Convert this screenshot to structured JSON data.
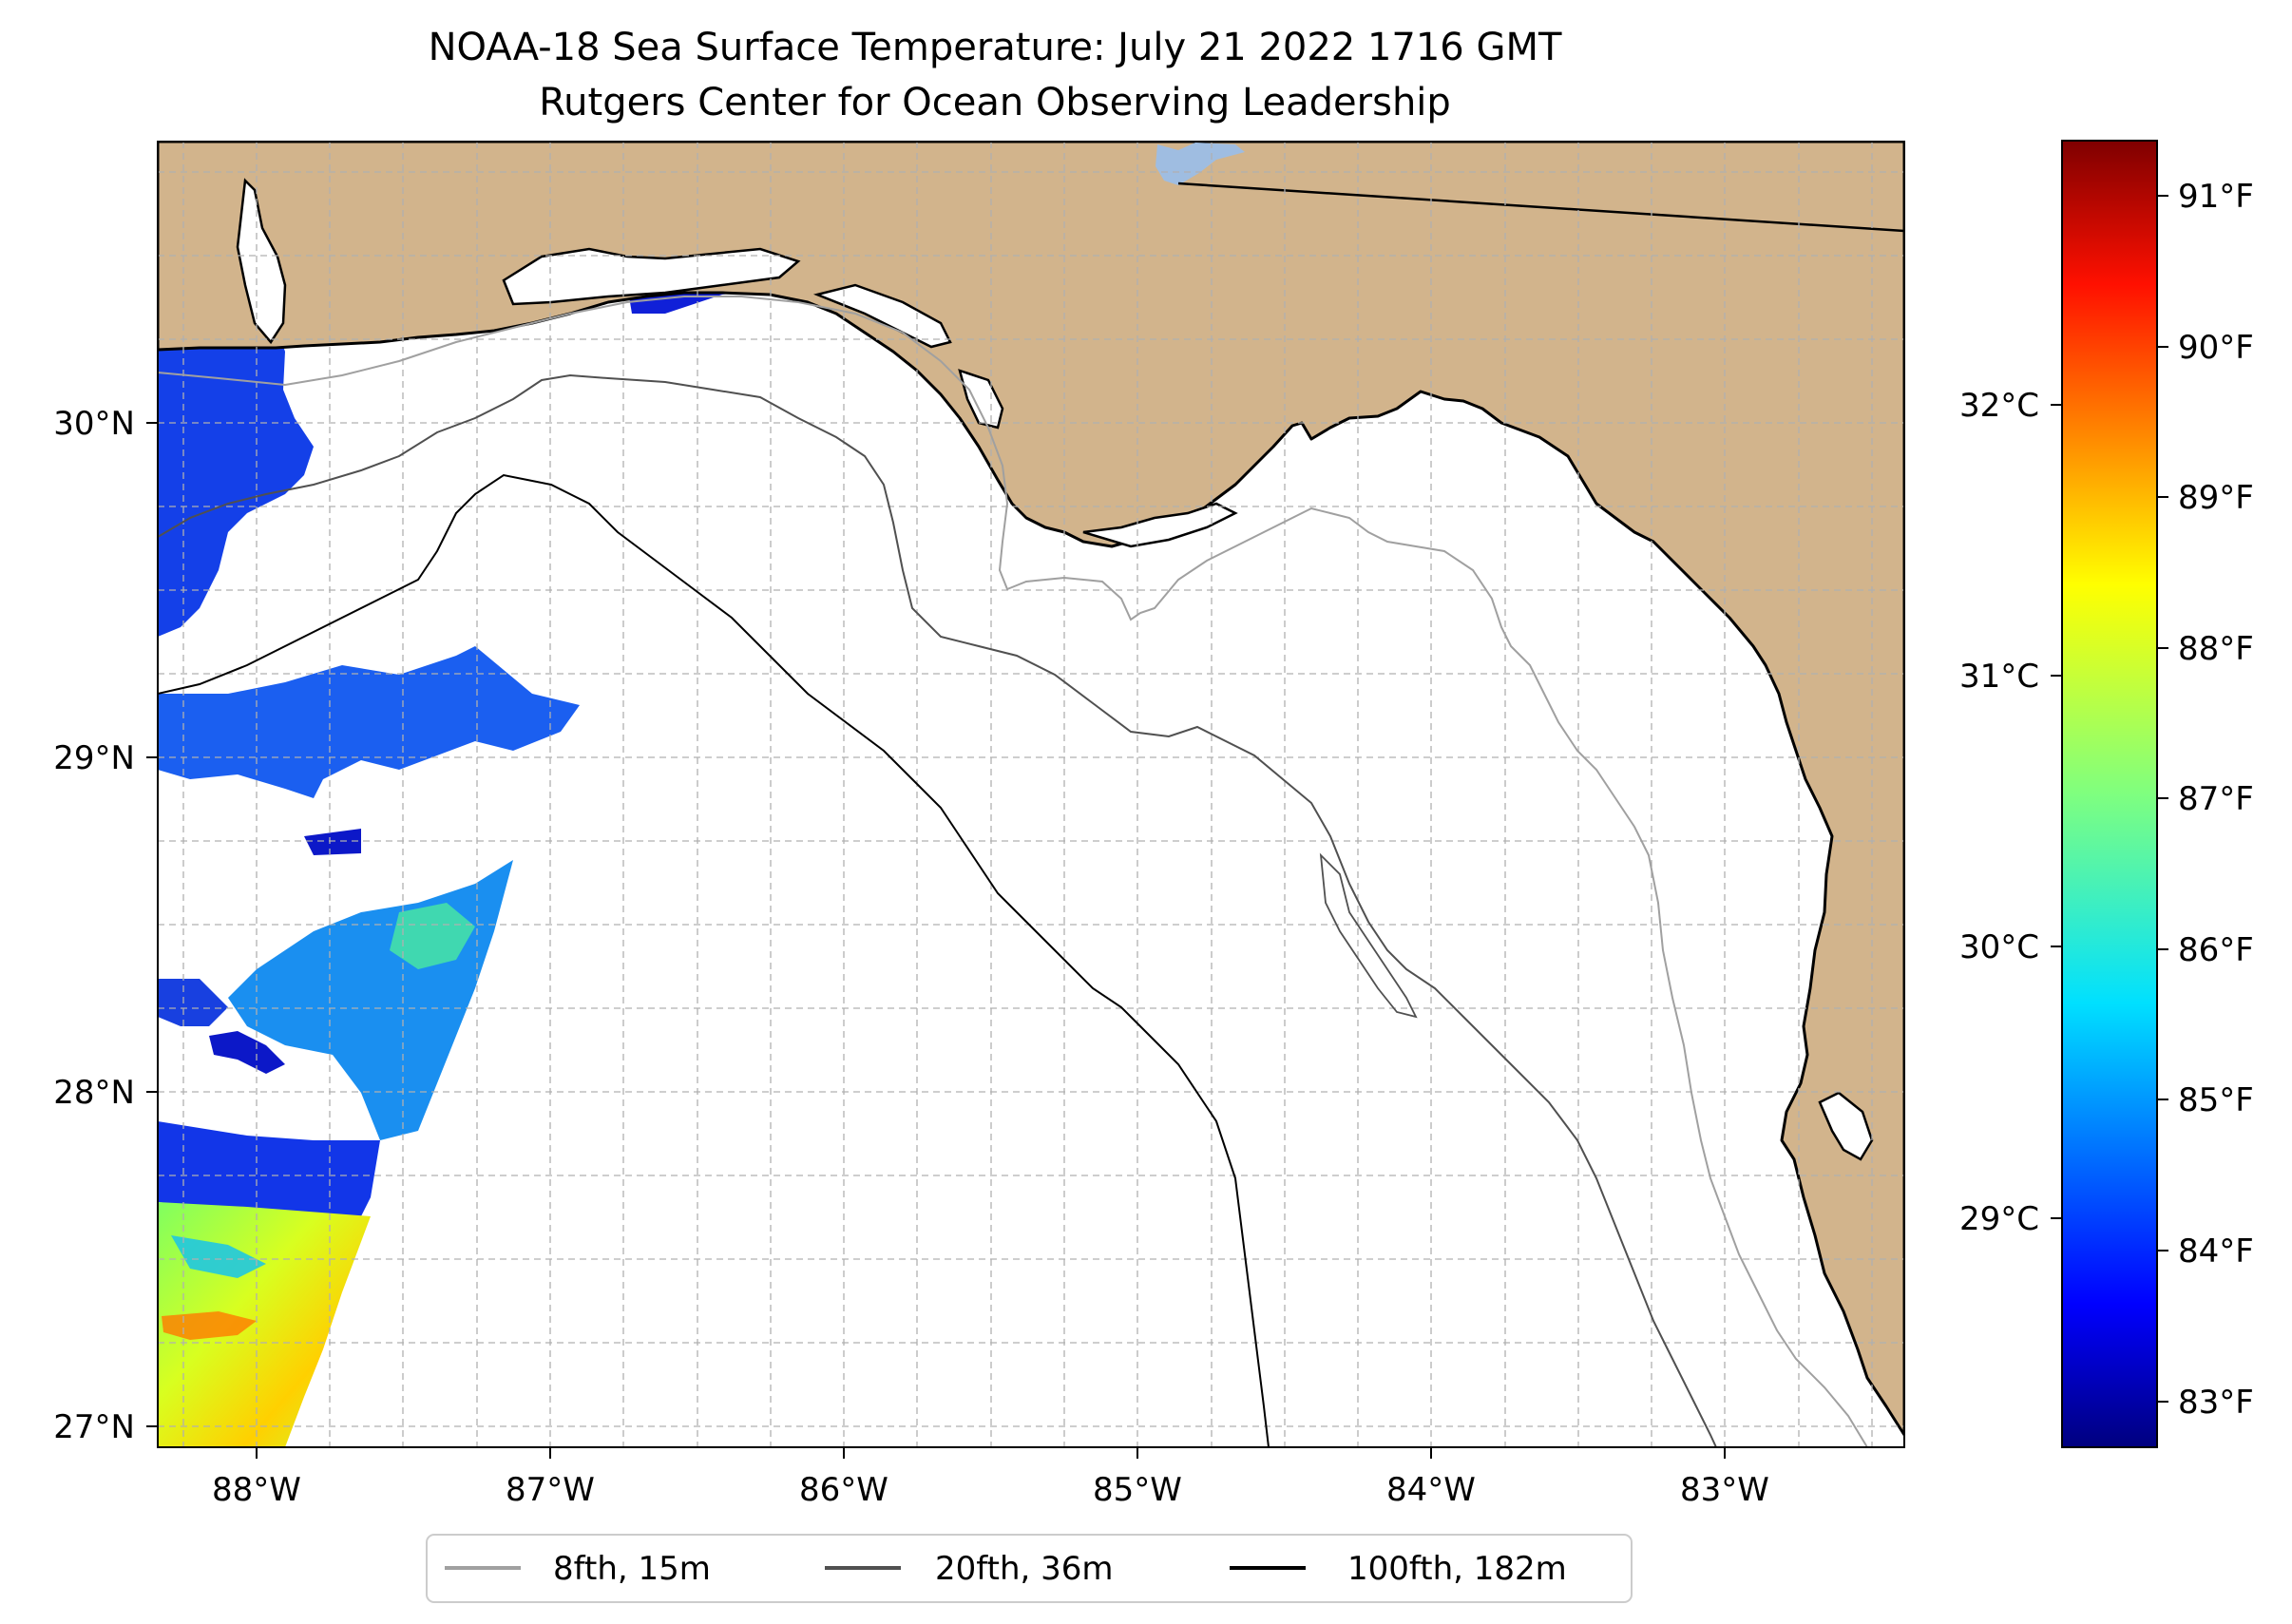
{
  "title": {
    "line1": "NOAA-18 Sea Surface Temperature: July 21 2022 1716 GMT",
    "line2": "Rutgers Center for Ocean Observing Leadership"
  },
  "map": {
    "lon_range": [
      -88.33,
      -82.39
    ],
    "lat_range": [
      26.94,
      30.83
    ],
    "lon_ticks": [
      "88°W",
      "87°W",
      "86°W",
      "85°W",
      "84°W",
      "83°W"
    ],
    "lat_ticks": [
      "27°N",
      "28°N",
      "29°N",
      "30°N"
    ],
    "land_color": "#d2b48c",
    "water_body_color": "#9fbde1",
    "grid_line_color": "#b0b0b0"
  },
  "colorbar": {
    "cmap": "jet",
    "fahrenheit_range": [
      82.7,
      91.4
    ],
    "fahrenheit_ticks": [
      "83°F",
      "84°F",
      "85°F",
      "86°F",
      "87°F",
      "88°F",
      "89°F",
      "90°F",
      "91°F"
    ],
    "celsius_ticks": [
      "29°C",
      "30°C",
      "31°C",
      "32°C"
    ]
  },
  "legend": {
    "items": [
      {
        "label": "8fth, 15m",
        "color": "#a0a0a0"
      },
      {
        "label": "20fth, 36m",
        "color": "#505050"
      },
      {
        "label": "100fth, 182m",
        "color": "#000000"
      }
    ]
  }
}
